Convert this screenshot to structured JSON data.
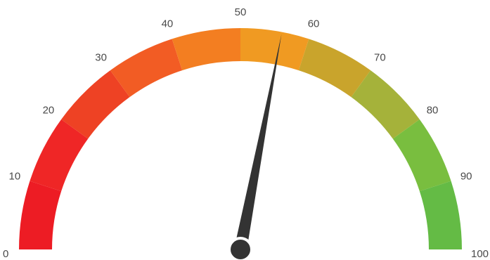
{
  "chart_data": {
    "type": "gauge",
    "title": "",
    "min": 0,
    "max": 100,
    "value": 56,
    "tick_labels": [
      "0",
      "10",
      "20",
      "30",
      "40",
      "50",
      "60",
      "70",
      "80",
      "90",
      "100"
    ],
    "bands": [
      {
        "from": 0,
        "to": 10,
        "color": "#ed1c24"
      },
      {
        "from": 10,
        "to": 20,
        "color": "#ef2626"
      },
      {
        "from": 20,
        "to": 30,
        "color": "#ee4224"
      },
      {
        "from": 30,
        "to": 40,
        "color": "#f25c24"
      },
      {
        "from": 40,
        "to": 50,
        "color": "#f37e21"
      },
      {
        "from": 50,
        "to": 60,
        "color": "#f09a22"
      },
      {
        "from": 60,
        "to": 70,
        "color": "#c9a42c"
      },
      {
        "from": 70,
        "to": 80,
        "color": "#a5b23a"
      },
      {
        "from": 80,
        "to": 90,
        "color": "#79be3f"
      },
      {
        "from": 90,
        "to": 100,
        "color": "#64bb45"
      }
    ],
    "needle_color": "#333333",
    "hub_stroke_color": "#ffffff",
    "label_color": "#4a4a4a",
    "grid": false
  }
}
